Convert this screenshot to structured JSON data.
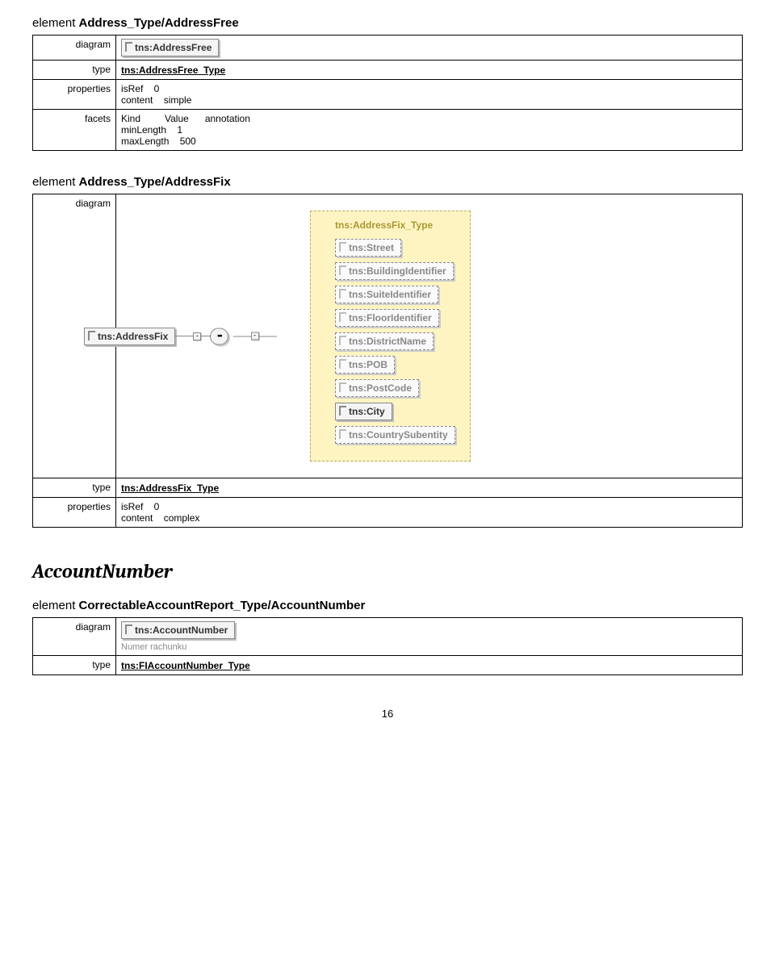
{
  "section1": {
    "title_prefix": "element ",
    "title_bold": "Address_Type/AddressFree",
    "rows": {
      "diagram_label": "diagram",
      "diagram_elem": "tns:AddressFree",
      "type_label": "type",
      "type_value": "tns:AddressFree_Type",
      "properties_label": "properties",
      "properties_value": "isRef    0\ncontent    simple",
      "facets_label": "facets",
      "facets_head": "Kind         Value      annotation",
      "facets_r1": "minLength    1",
      "facets_r2": "maxLength    500"
    }
  },
  "section2": {
    "title_prefix": "element ",
    "title_bold": "Address_Type/AddressFix",
    "rows": {
      "diagram_label": "diagram",
      "type_label": "type",
      "type_value": "tns:AddressFix_Type",
      "properties_label": "properties",
      "properties_value": "isRef    0\ncontent    complex"
    },
    "diagram": {
      "root": "tns:AddressFix",
      "type_title": "tns:AddressFix_Type",
      "children": [
        {
          "label": "tns:Street",
          "optional": true
        },
        {
          "label": "tns:BuildingIdentifier",
          "optional": true
        },
        {
          "label": "tns:SuiteIdentifier",
          "optional": true
        },
        {
          "label": "tns:FloorIdentifier",
          "optional": true
        },
        {
          "label": "tns:DistrictName",
          "optional": true
        },
        {
          "label": "tns:POB",
          "optional": true
        },
        {
          "label": "tns:PostCode",
          "optional": true
        },
        {
          "label": "tns:City",
          "optional": false
        },
        {
          "label": "tns:CountrySubentity",
          "optional": true
        }
      ]
    }
  },
  "heading": "AccountNumber",
  "section3": {
    "title_prefix": "element ",
    "title_bold": "CorrectableAccountReport_Type/AccountNumber",
    "rows": {
      "diagram_label": "diagram",
      "diagram_elem": "tns:AccountNumber",
      "diagram_sub": "Numer rachunku",
      "type_label": "type",
      "type_value": "tns:FIAccountNumber_Type"
    }
  },
  "page_number": "16"
}
